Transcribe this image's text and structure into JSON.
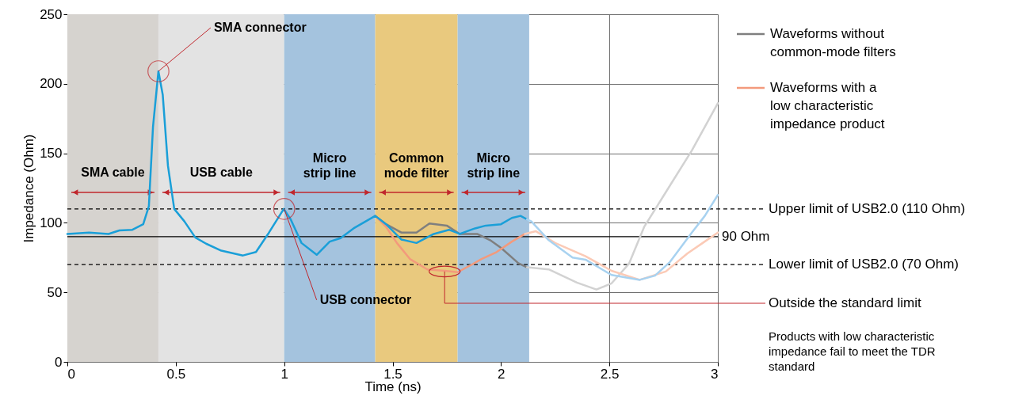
{
  "chart_data": {
    "type": "line",
    "xlabel": "Time (ns)",
    "ylabel": "Impedance (Ohm)",
    "xlim": [
      0,
      3
    ],
    "xticks": [
      0,
      0.5,
      1,
      1.5,
      2,
      2.5,
      3
    ],
    "ylim": [
      0,
      250
    ],
    "yticks": [
      0,
      50,
      100,
      150,
      200,
      250
    ],
    "grid": true,
    "legend": "right",
    "series": [
      {
        "name": "Waveforms without common-mode filters",
        "color": "#7f7f7f",
        "x": [
          1.42,
          1.47,
          1.54,
          1.61,
          1.67,
          1.75,
          1.81,
          1.89,
          1.95,
          2.0,
          2.08,
          2.12
        ],
        "values": [
          105,
          99,
          93,
          93,
          99.5,
          98,
          92,
          92,
          87.5,
          82,
          71,
          68
        ]
      },
      {
        "color": "#d2d2d2",
        "x": [
          2.12,
          2.22,
          2.35,
          2.44,
          2.51,
          2.59,
          2.66,
          2.76,
          2.88,
          3.0
        ],
        "values": [
          68,
          66.5,
          57,
          52,
          56.5,
          70.5,
          97,
          122,
          152,
          186
        ]
      },
      {
        "name": "Waveforms with a low characteristic impedance product",
        "color": "#f39a7c",
        "x": [
          1.42,
          1.47,
          1.52,
          1.58,
          1.66,
          1.74,
          1.8,
          1.86,
          1.91,
          1.98,
          2.05,
          2.11
        ],
        "values": [
          105,
          97,
          85.5,
          74,
          66.5,
          65.5,
          64.5,
          69.5,
          74,
          79,
          86.5,
          92
        ]
      },
      {
        "color": "#fbcab6",
        "x": [
          2.11,
          2.16,
          2.25,
          2.39,
          2.51,
          2.64,
          2.76,
          2.86,
          2.93,
          3.0
        ],
        "values": [
          92,
          94,
          85.5,
          76,
          65.5,
          59,
          65,
          78,
          85.5,
          93
        ]
      },
      {
        "color": "#1a9fd8",
        "x": [
          0,
          0.1,
          0.19,
          0.24,
          0.3,
          0.35,
          0.376,
          0.395,
          0.42,
          0.44,
          0.464,
          0.493,
          0.54,
          0.59,
          0.64,
          0.71,
          0.81,
          0.87,
          0.93,
          0.998,
          1.03,
          1.08,
          1.15,
          1.21,
          1.26,
          1.32,
          1.42,
          1.47,
          1.54,
          1.61,
          1.69,
          1.76,
          1.81,
          1.88,
          1.93,
          2.0,
          2.05,
          2.09,
          2.12
        ],
        "values": [
          92,
          93,
          92,
          94.5,
          95,
          99,
          112,
          169,
          209,
          192,
          141,
          110,
          101,
          89.5,
          85,
          80,
          76.5,
          79,
          93,
          110,
          102.5,
          85.5,
          77,
          86.5,
          89,
          96,
          105,
          99,
          88,
          85.5,
          92,
          95,
          92,
          96,
          98,
          99,
          103.5,
          105,
          102.5
        ]
      },
      {
        "color": "#a8d2f0",
        "x": [
          2.12,
          2.14,
          2.22,
          2.33,
          2.39,
          2.51,
          2.64,
          2.71,
          2.78,
          2.88,
          2.94,
          3.0
        ],
        "values": [
          102.5,
          101,
          87.5,
          75,
          73.5,
          62.5,
          59,
          62,
          72,
          93,
          105,
          120
        ]
      }
    ],
    "bands": [
      {
        "axis": "x",
        "from": 0,
        "to": 0.42,
        "label": "SMA cable",
        "color": "#d6d3cf"
      },
      {
        "axis": "x",
        "from": 0.42,
        "to": 1,
        "label": "USB cable",
        "color": "#e3e3e3"
      },
      {
        "axis": "x",
        "from": 1,
        "to": 1.42,
        "label": "Micro strip line",
        "color": "#a4c3de"
      },
      {
        "axis": "x",
        "from": 1.42,
        "to": 1.8,
        "label": "Common mode filter",
        "color": "#e9c97e"
      },
      {
        "axis": "x",
        "from": 1.8,
        "to": 2.13,
        "label": "Micro strip line",
        "color": "#a4c3de"
      }
    ],
    "ref_lines": [
      {
        "axis": "y",
        "value": 110,
        "label": "Upper limit of USB2.0 (110 Ohm)",
        "line_style": "dashed"
      },
      {
        "axis": "y",
        "value": 90,
        "label": "90 Ohm",
        "line_style": "solid"
      },
      {
        "axis": "y",
        "value": 70,
        "label": "Lower limit of USB2.0 (70 Ohm)",
        "line_style": "dashed"
      }
    ],
    "annotations": [
      {
        "text": "SMA connector",
        "x": 0.42,
        "y": 209
      },
      {
        "text": "USB connector",
        "x": 1.0,
        "y": 110
      },
      {
        "text": "Outside the standard limit",
        "x": 1.74,
        "y": 65
      },
      "Products with low characteristic impedance fail to meet the TDR standard"
    ]
  }
}
